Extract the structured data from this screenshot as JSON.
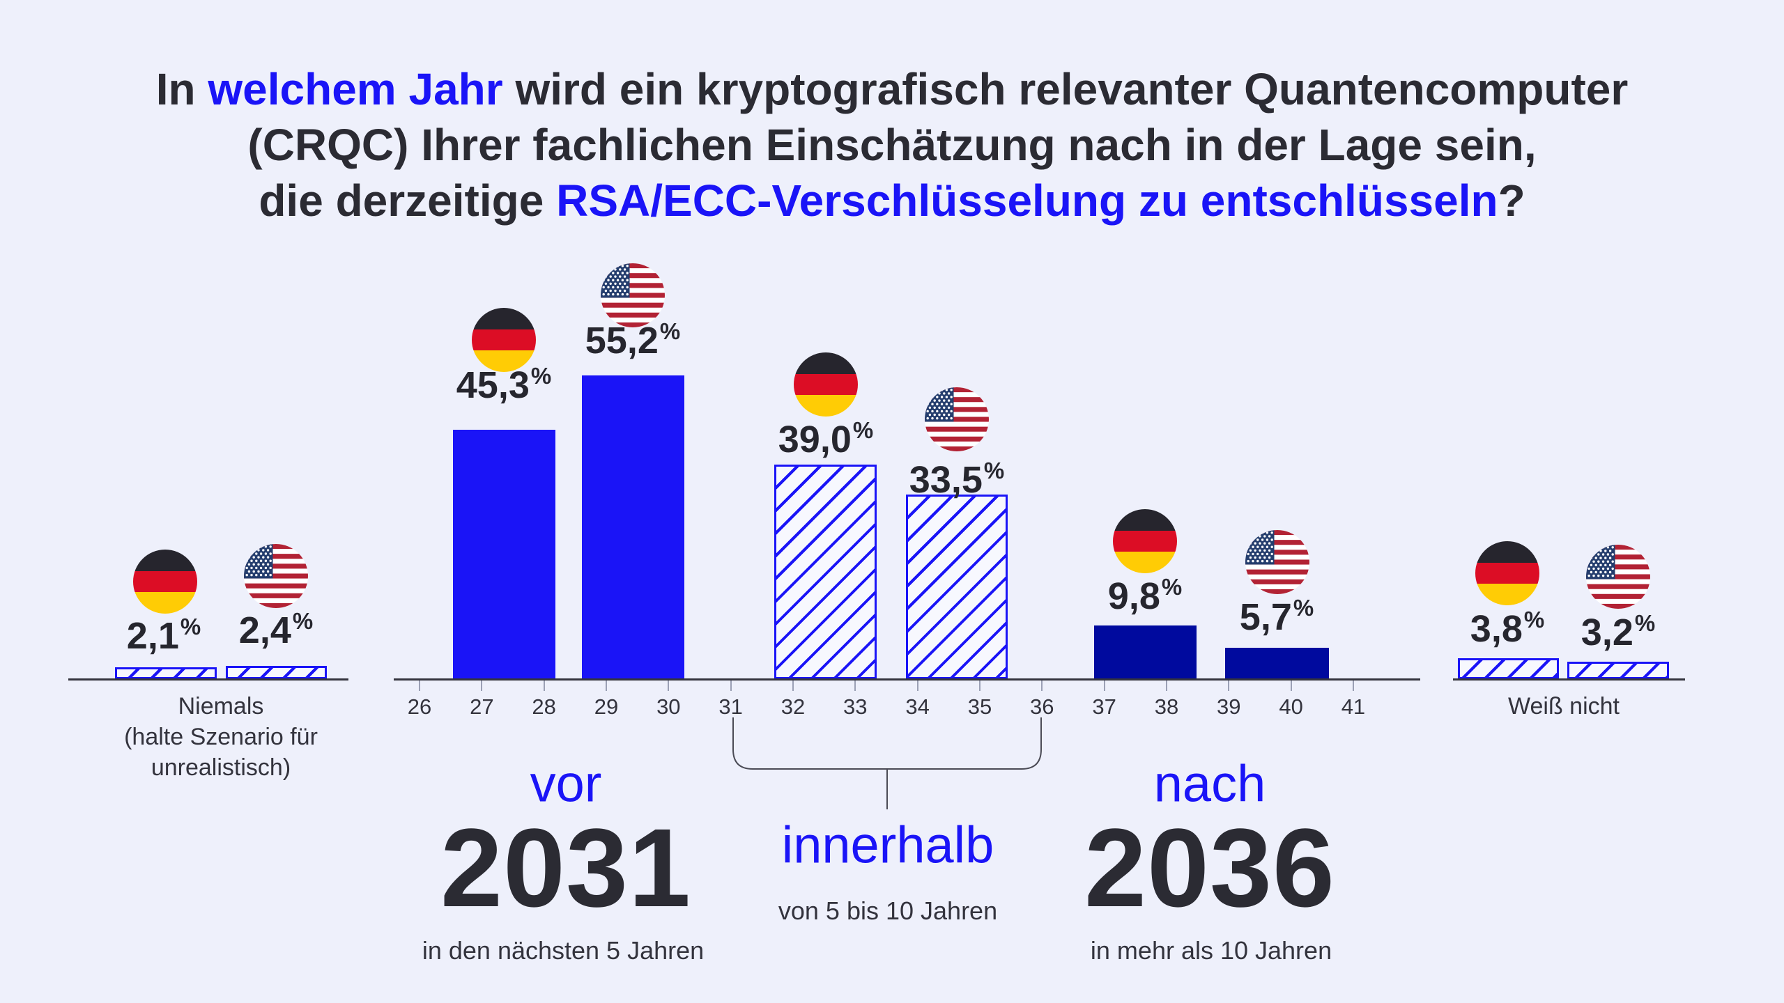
{
  "title": {
    "line1_pre": "In ",
    "line1_highlight": "welchem Jahr",
    "line1_post": " wird ein kryptografisch relevanter Quantencomputer",
    "line2": "(CRQC) Ihrer fachlichen Einschätzung nach in der Lage sein,",
    "line3_pre": "die derzeitige ",
    "line3_highlight": "RSA/ECC-Verschlüsselung zu entschlüsseln",
    "line3_post": "?"
  },
  "percent_sign": "%",
  "groups": [
    {
      "id": "niemals",
      "de_label": "2,1",
      "us_label": "2,4",
      "caption_line1": "Niemals",
      "caption_line2": "(halte Szenario für",
      "caption_line3": "unrealistisch)"
    },
    {
      "id": "vor_2031",
      "keyword": "vor",
      "year": "2031",
      "subcaption": "in den nächsten 5 Jahren",
      "de_label": "45,3",
      "us_label": "55,2"
    },
    {
      "id": "innerhalb",
      "keyword": "innerhalb",
      "subcaption": "von 5 bis 10 Jahren",
      "de_label": "39,0",
      "us_label": "33,5"
    },
    {
      "id": "nach_2036",
      "keyword": "nach",
      "year": "2036",
      "subcaption": "in mehr als 10 Jahren",
      "de_label": "9,8",
      "us_label": "5,7"
    },
    {
      "id": "weiss_nicht",
      "caption_line1": "Weiß nicht",
      "de_label": "3,8",
      "us_label": "3,2"
    }
  ],
  "colors": {
    "background": "#EEF0FB",
    "accent_blue": "#1A14F7",
    "navy": "#000A9E",
    "dark_text": "#2B2B33",
    "germany_flag_black": "#26252D",
    "germany_flag_red": "#DC0D25",
    "germany_flag_gold": "#FFCC05",
    "usa_flag_red": "#B22234",
    "usa_flag_white": "#FFFFFF",
    "usa_flag_blue": "#253E6E"
  },
  "chart_data": {
    "type": "bar",
    "title": "In welchem Jahr wird ein kryptografisch relevanter Quantencomputer (CRQC) Ihrer fachlichen Einschätzung nach in der Lage sein, die derzeitige RSA/ECC-Verschlüsselung zu entschlüsseln?",
    "unit": "%",
    "categories": [
      "Niemals (halte Szenario für unrealistisch)",
      "vor 2031 (in den nächsten 5 Jahren)",
      "innerhalb von 5 bis 10 Jahren",
      "nach 2036 (in mehr als 10 Jahren)",
      "Weiß nicht"
    ],
    "series": [
      {
        "name": "Deutschland",
        "values": [
          2.1,
          45.3,
          39.0,
          9.8,
          3.8
        ]
      },
      {
        "name": "USA",
        "values": [
          2.4,
          55.2,
          33.5,
          5.7,
          3.2
        ]
      }
    ],
    "value_labels": {
      "Deutschland": [
        "2,1%",
        "45,3%",
        "39,0%",
        "9,8%",
        "3,8%"
      ],
      "USA": [
        "2,4%",
        "55,2%",
        "33,5%",
        "5,7%",
        "3,2%"
      ]
    },
    "x_axis_ticks": [
      "26",
      "27",
      "28",
      "29",
      "30",
      "31",
      "32",
      "33",
      "34",
      "35",
      "36",
      "37",
      "38",
      "39",
      "40",
      "41"
    ],
    "legend_position": "none",
    "grid": false
  }
}
